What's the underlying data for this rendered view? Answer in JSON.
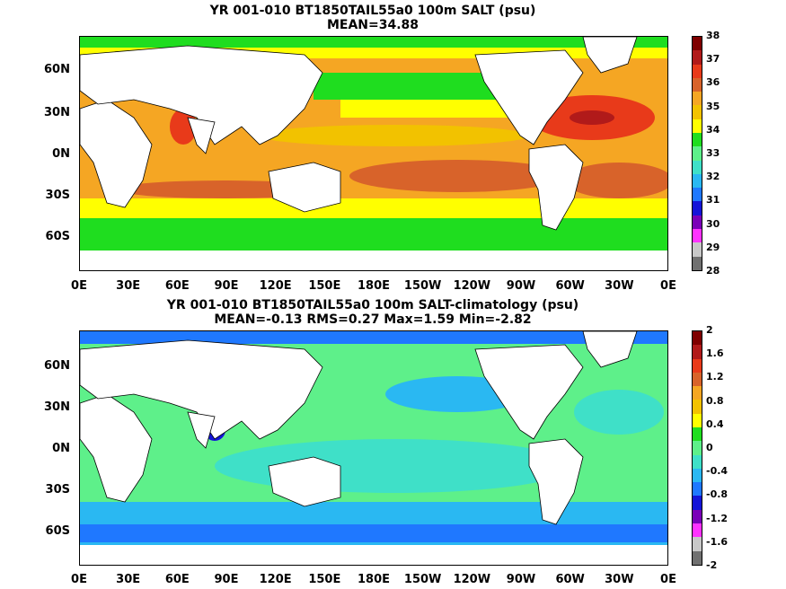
{
  "panels": [
    {
      "title_line1": "YR 001-010 BT1850TAIL55a0 100m SALT (psu)",
      "title_line2": "MEAN=34.88",
      "colorbar_labels": [
        "38",
        "37",
        "36",
        "35",
        "34",
        "33",
        "32",
        "31",
        "30",
        "29",
        "28"
      ],
      "colors": [
        "#7f0000",
        "#b11a1a",
        "#e83a1a",
        "#d8632a",
        "#f5a623",
        "#f2c200",
        "#ffff00",
        "#1fdd1f",
        "#5ef08a",
        "#3fe0c8",
        "#2ab8f2",
        "#1f78ff",
        "#1414d8",
        "#7a00b8",
        "#ff33ff",
        "#c8c8c8",
        "#707070"
      ]
    },
    {
      "title_line1": "YR 001-010 BT1850TAIL55a0 100m SALT-climatology (psu)",
      "title_line2": "MEAN=-0.13   RMS=0.27   Max=1.59   Min=-2.82",
      "colorbar_labels": [
        "2",
        "1.6",
        "1.2",
        "0.8",
        "0.4",
        "0",
        "-0.4",
        "-0.8",
        "-1.2",
        "-1.6",
        "-2"
      ],
      "colors": [
        "#7f0000",
        "#b11a1a",
        "#e83a1a",
        "#d8632a",
        "#f5a623",
        "#f2c200",
        "#ffff00",
        "#1fdd1f",
        "#5ef08a",
        "#3fe0c8",
        "#2ab8f2",
        "#1f78ff",
        "#1414d8",
        "#7a00b8",
        "#ff33ff",
        "#c8c8c8",
        "#707070"
      ]
    }
  ],
  "lat_labels": [
    "60N",
    "30N",
    "0N",
    "30S",
    "60S"
  ],
  "lon_labels": [
    "0E",
    "30E",
    "60E",
    "90E",
    "120E",
    "150E",
    "180E",
    "150W",
    "120W",
    "90W",
    "60W",
    "30W",
    "0E"
  ]
}
